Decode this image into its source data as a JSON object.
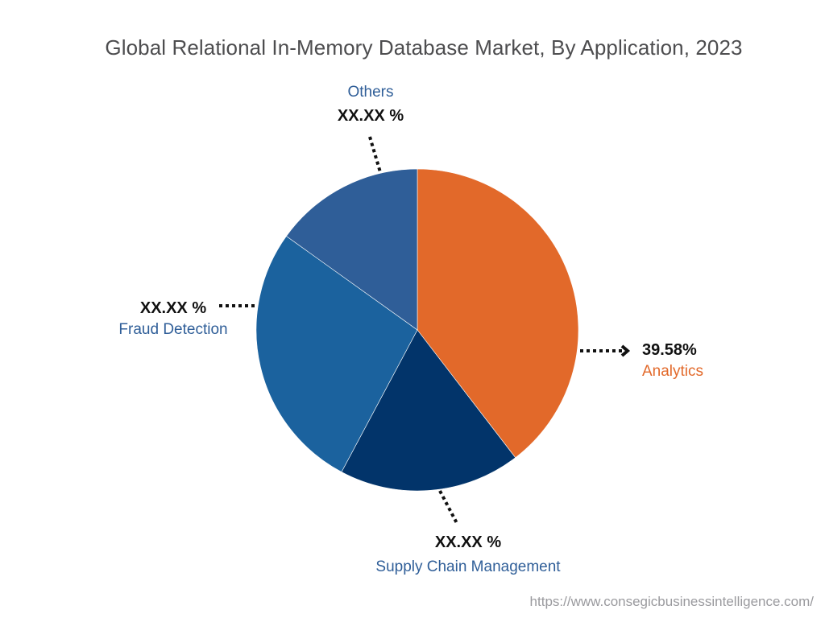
{
  "title": "Global Relational In-Memory Database Market, By Application, 2023",
  "footer": {
    "url": "https://www.consegicbusinessintelligence.com/"
  },
  "colors": {
    "analytics": "#e2692a",
    "supply_chain": "#02346a",
    "fraud_detection": "#1b629e",
    "others": "#2f5e98",
    "label_blue": "#2f5e98",
    "label_orange": "#e2692a"
  },
  "labels": {
    "analytics": {
      "pct": "39.58%",
      "name": "Analytics"
    },
    "supply_chain": {
      "pct": "XX.XX %",
      "name": "Supply Chain Management"
    },
    "fraud_detection": {
      "pct": "XX.XX %",
      "name": "Fraud Detection"
    },
    "others": {
      "pct": "XX.XX %",
      "name": "Others"
    }
  },
  "chart_data": {
    "type": "pie",
    "title": "Global Relational In-Memory Database Market, By Application, 2023",
    "categories": [
      "Analytics",
      "Supply Chain Management",
      "Fraud Detection",
      "Others"
    ],
    "values": [
      39.58,
      18.2,
      27.1,
      15.1
    ],
    "value_labels": [
      "39.58%",
      "XX.XX %",
      "XX.XX %",
      "XX.XX %"
    ],
    "colors": [
      "#e2692a",
      "#02346a",
      "#1b629e",
      "#2f5e98"
    ],
    "start_angle": "12 o'clock, clockwise",
    "legend": "none (callout labels)",
    "note": "Only Analytics value is shown; other slice values are estimated from slice geometry"
  }
}
